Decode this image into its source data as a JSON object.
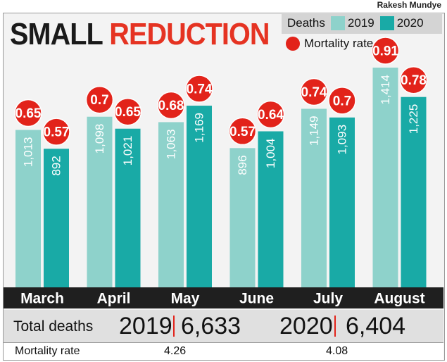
{
  "credit": "Rakesh Mundye",
  "title_part1": "SMALL",
  "title_part2": "REDUCTION",
  "legend": {
    "deaths_label": "Deaths",
    "series1": "2019",
    "series2": "2020",
    "rate_label": "Mortality rate"
  },
  "colors": {
    "series2019": "#8ed2cb",
    "series2020": "#19aaa6",
    "rate_dot": "#e2231a",
    "title_red": "#e53322"
  },
  "chart_data": {
    "type": "bar",
    "categories": [
      "March",
      "April",
      "May",
      "June",
      "July",
      "August"
    ],
    "series": [
      {
        "name": "2019",
        "values": [
          1013,
          1098,
          1063,
          896,
          1149,
          1414
        ],
        "labels": [
          "1,013",
          "1,098",
          "1,063",
          "896",
          "1,149",
          "1,414"
        ],
        "mortality_rate": [
          0.65,
          0.7,
          0.68,
          0.57,
          0.74,
          0.91
        ],
        "mortality_labels": [
          "0.65",
          "0.7",
          "0.68",
          "0.57",
          "0.74",
          "0.91"
        ]
      },
      {
        "name": "2020",
        "values": [
          892,
          1021,
          1169,
          1004,
          1093,
          1225
        ],
        "labels": [
          "892",
          "1,021",
          "1,169",
          "1,004",
          "1,093",
          "1,225"
        ],
        "mortality_rate": [
          0.57,
          0.65,
          0.74,
          0.64,
          0.7,
          0.78
        ],
        "mortality_labels": [
          "0.57",
          "0.65",
          "0.74",
          "0.64",
          "0.7",
          "0.78"
        ]
      }
    ],
    "ylim": [
      0,
      1414
    ],
    "grid": false,
    "legend_position": "top-right"
  },
  "totals": {
    "label": "Total deaths",
    "year1": "2019",
    "value1": "6,633",
    "year2": "2020",
    "value2": "6,404"
  },
  "mortality_summary": {
    "label": "Mortality rate",
    "value1": "4.26",
    "value2": "4.08"
  }
}
